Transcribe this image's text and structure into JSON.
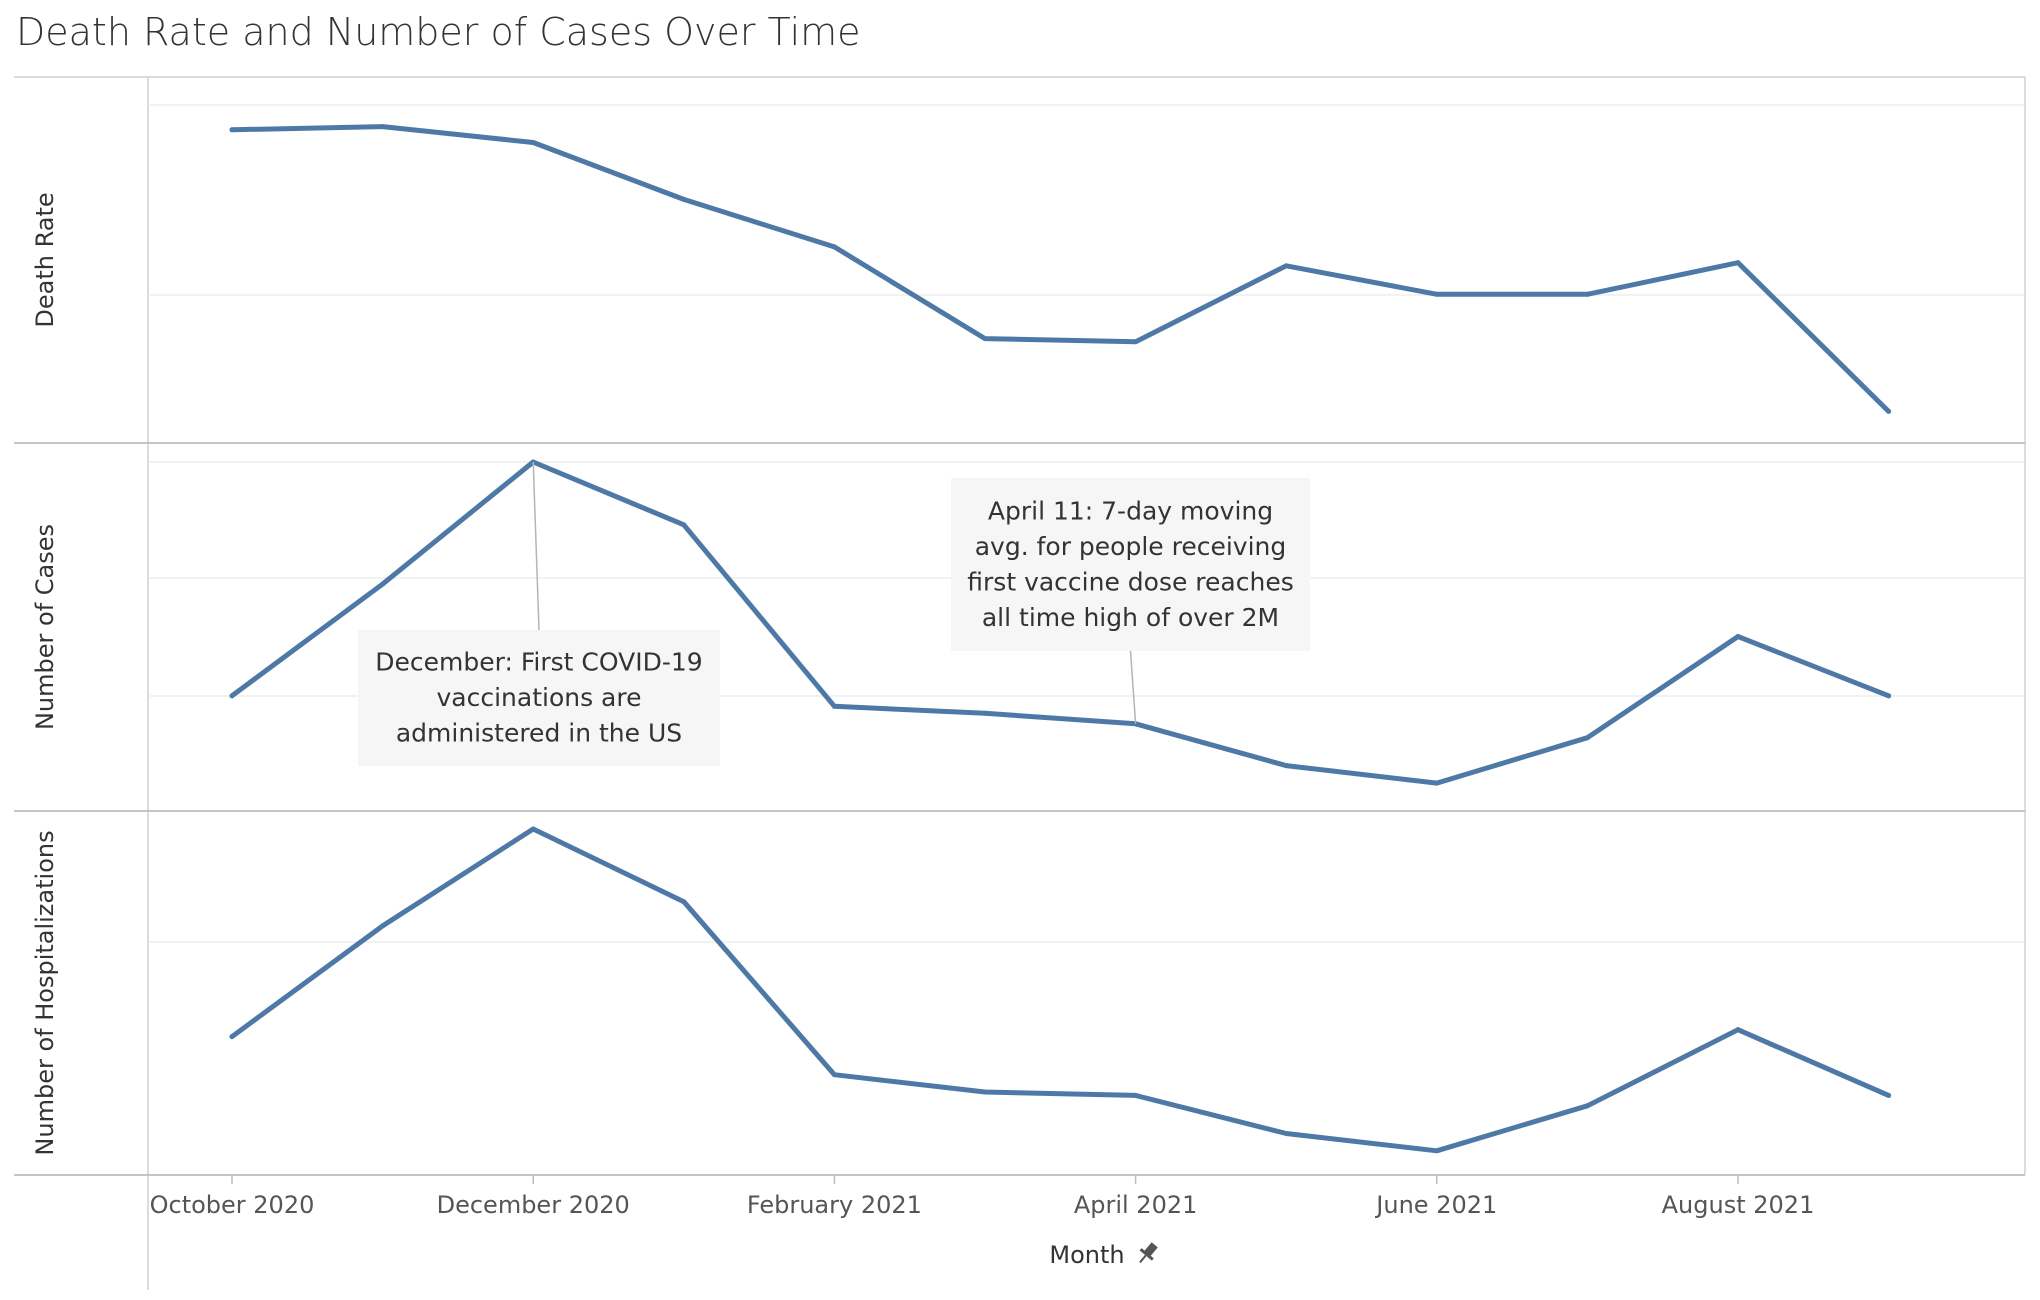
{
  "chart_data": {
    "type": "line",
    "title": "Death Rate and Number of Cases Over Time",
    "xlabel": "Month",
    "x": [
      "2020-10",
      "2020-11",
      "2020-12",
      "2021-01",
      "2021-02",
      "2021-03",
      "2021-04",
      "2021-05",
      "2021-06",
      "2021-07",
      "2021-08",
      "2021-09"
    ],
    "x_tick_labels": [
      "October 2020",
      "December 2020",
      "February 2021",
      "April 2021",
      "June 2021",
      "August 2021"
    ],
    "series": [
      {
        "name": "Death Rate",
        "values": [
          99,
          100,
          95,
          77,
          62,
          33,
          32,
          56,
          47,
          47,
          57,
          10
        ],
        "ylim": [
          0,
          110
        ]
      },
      {
        "name": "Number of Cases",
        "values": [
          33,
          65,
          100,
          82,
          30,
          28,
          25,
          13,
          8,
          21,
          50,
          33
        ],
        "ylim": [
          0,
          100
        ]
      },
      {
        "name": "Number of Hospitalizations",
        "values": [
          40,
          72,
          100,
          79,
          29,
          24,
          23,
          12,
          7,
          20,
          42,
          23
        ],
        "ylim": [
          0,
          100
        ]
      }
    ],
    "annotations": [
      {
        "series": 1,
        "x": "2020-12",
        "lines": [
          "December: First COVID-19",
          "vaccinations are",
          "administered in the US"
        ]
      },
      {
        "series": 1,
        "x": "2021-04",
        "lines": [
          "April 11: 7-day moving",
          "avg. for people receiving",
          "first vaccine dose reaches",
          "all time high of over 2M"
        ]
      }
    ],
    "grid": true,
    "line_color": "#4e79a7",
    "pin_icon": "pin-icon"
  }
}
